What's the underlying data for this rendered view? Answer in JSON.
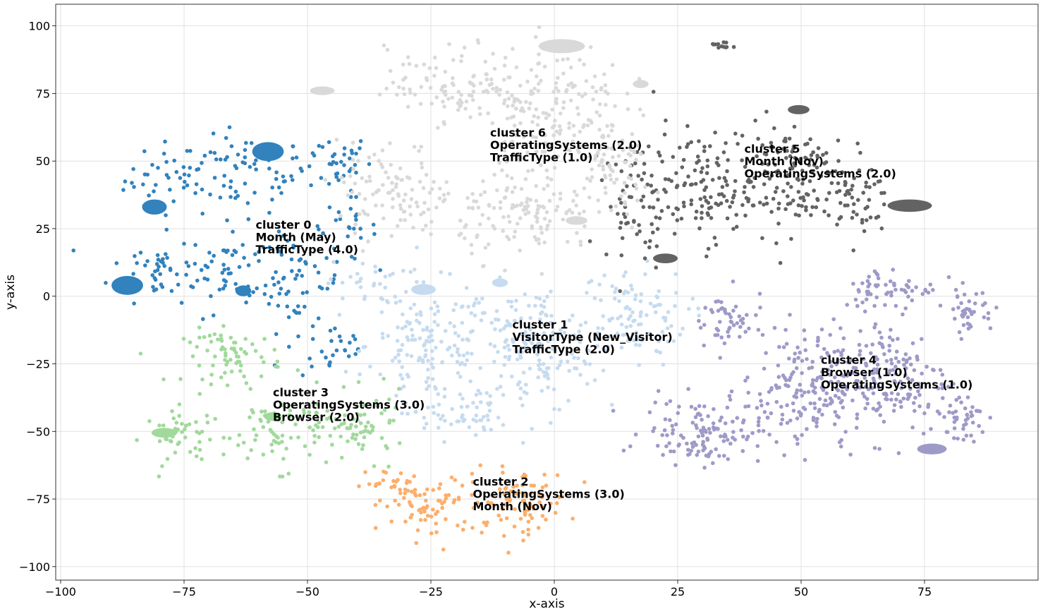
{
  "chart_data": {
    "type": "scatter",
    "title": "",
    "xlabel": "x-axis",
    "ylabel": "y-axis",
    "xlim": [
      -101,
      98
    ],
    "ylim": [
      -105,
      108
    ],
    "xticks": [
      -100,
      -75,
      -50,
      -25,
      0,
      25,
      50,
      75
    ],
    "yticks": [
      -100,
      -75,
      -50,
      -25,
      0,
      25,
      50,
      75,
      100
    ],
    "xtick_labels": [
      "−100",
      "−75",
      "−50",
      "−25",
      "0",
      "25",
      "50",
      "75"
    ],
    "ytick_labels": [
      "−100",
      "−75",
      "−50",
      "−25",
      "0",
      "25",
      "50",
      "75",
      "100"
    ],
    "grid": true,
    "legend": "none",
    "clusters": [
      {
        "name": "cluster 0",
        "color": "#3182bd",
        "label_lines": [
          "cluster 0",
          "Month (May)",
          "TrafficType (4.0)"
        ],
        "label_pos": [
          -60.5,
          25
        ],
        "blobs": [
          {
            "cx": -77,
            "cy": 43,
            "rx": 10,
            "ry": 14,
            "n": 45
          },
          {
            "cx": -62,
            "cy": 45,
            "rx": 12,
            "ry": 14,
            "n": 55
          },
          {
            "cx": -46,
            "cy": 50,
            "rx": 9,
            "ry": 10,
            "n": 40
          },
          {
            "cx": -80,
            "cy": 10,
            "rx": 10,
            "ry": 12,
            "n": 45
          },
          {
            "cx": -66,
            "cy": 10,
            "rx": 10,
            "ry": 16,
            "n": 60
          },
          {
            "cx": -52,
            "cy": 5,
            "rx": 9,
            "ry": 18,
            "n": 55
          },
          {
            "cx": -42,
            "cy": 25,
            "rx": 6,
            "ry": 12,
            "n": 25
          },
          {
            "cx": -44,
            "cy": -20,
            "rx": 7,
            "ry": 10,
            "n": 25
          }
        ],
        "blobs_big": [
          [
            -86.5,
            4,
            3.2,
            3.5
          ],
          [
            -58,
            53.5,
            3.2,
            3.5
          ],
          [
            -81,
            33,
            2.5,
            2.8
          ],
          [
            -63,
            2,
            1.6,
            2
          ]
        ]
      },
      {
        "name": "cluster 1",
        "color": "#c6dbef",
        "label_lines": [
          "cluster 1",
          "VisitorType (New_Visitor)",
          "TrafficType (2.0)"
        ],
        "label_pos": [
          -8.5,
          -12
        ],
        "blobs": [
          {
            "cx": -25,
            "cy": -18,
            "rx": 13,
            "ry": 22,
            "n": 150
          },
          {
            "cx": -5,
            "cy": -20,
            "rx": 14,
            "ry": 24,
            "n": 170
          },
          {
            "cx": 15,
            "cy": -8,
            "rx": 12,
            "ry": 18,
            "n": 110
          },
          {
            "cx": -38,
            "cy": 5,
            "rx": 8,
            "ry": 8,
            "n": 30
          },
          {
            "cx": -20,
            "cy": -45,
            "rx": 10,
            "ry": 8,
            "n": 50
          }
        ],
        "blobs_big": [
          [
            -26.5,
            2.5,
            2.5,
            2
          ],
          [
            -11,
            5,
            1.6,
            1.6
          ]
        ]
      },
      {
        "name": "cluster 2",
        "color": "#fdae6b",
        "label_lines": [
          "cluster 2",
          "OperatingSystems (3.0)",
          "Month (Nov)"
        ],
        "label_pos": [
          -16.5,
          -70
        ],
        "blobs": [
          {
            "cx": -25,
            "cy": -78,
            "rx": 10,
            "ry": 12,
            "n": 75
          },
          {
            "cx": -7,
            "cy": -76,
            "rx": 10,
            "ry": 12,
            "n": 85
          },
          {
            "cx": -34,
            "cy": -69,
            "rx": 5,
            "ry": 5,
            "n": 20
          }
        ],
        "blobs_big": []
      },
      {
        "name": "cluster 3",
        "color": "#a1d99b",
        "label_lines": [
          "cluster 3",
          "OperatingSystems (3.0)",
          "Browser (2.0)"
        ],
        "label_pos": [
          -57,
          -37
        ],
        "blobs": [
          {
            "cx": -65,
            "cy": -22,
            "rx": 10,
            "ry": 10,
            "n": 70
          },
          {
            "cx": -75,
            "cy": -52,
            "rx": 8,
            "ry": 10,
            "n": 50
          },
          {
            "cx": -55,
            "cy": -50,
            "rx": 12,
            "ry": 14,
            "n": 80
          },
          {
            "cx": -38,
            "cy": -48,
            "rx": 8,
            "ry": 12,
            "n": 55
          }
        ],
        "blobs_big": [
          [
            -79,
            -50.5,
            2.6,
            1.8
          ],
          [
            -57,
            -44.5,
            1.8,
            1.6
          ]
        ]
      },
      {
        "name": "cluster 4",
        "color": "#9e9ac8",
        "label_lines": [
          "cluster 4",
          "Browser (1.0)",
          "OperatingSystems (1.0)"
        ],
        "label_pos": [
          54,
          -25
        ],
        "blobs": [
          {
            "cx": 35,
            "cy": -10,
            "rx": 8,
            "ry": 12,
            "n": 50
          },
          {
            "cx": 30,
            "cy": -50,
            "rx": 12,
            "ry": 12,
            "n": 120
          },
          {
            "cx": 50,
            "cy": -35,
            "rx": 12,
            "ry": 22,
            "n": 180
          },
          {
            "cx": 68,
            "cy": -30,
            "rx": 12,
            "ry": 22,
            "n": 160
          },
          {
            "cx": 68,
            "cy": 3,
            "rx": 10,
            "ry": 8,
            "n": 60
          },
          {
            "cx": 84,
            "cy": -5,
            "rx": 5,
            "ry": 8,
            "n": 40
          },
          {
            "cx": 82,
            "cy": -45,
            "rx": 6,
            "ry": 10,
            "n": 45
          }
        ],
        "blobs_big": [
          [
            76.5,
            -56.5,
            3,
            2
          ]
        ]
      },
      {
        "name": "cluster 5",
        "color": "#636363",
        "label_lines": [
          "cluster 5",
          "Month (Nov)",
          "OperatingSystems (2.0)"
        ],
        "label_pos": [
          38.5,
          53
        ],
        "blobs": [
          {
            "cx": 17,
            "cy": 35,
            "rx": 7,
            "ry": 22,
            "n": 70
          },
          {
            "cx": 30,
            "cy": 40,
            "rx": 10,
            "ry": 20,
            "n": 110
          },
          {
            "cx": 47,
            "cy": 45,
            "rx": 12,
            "ry": 22,
            "n": 140
          },
          {
            "cx": 60,
            "cy": 35,
            "rx": 8,
            "ry": 12,
            "n": 50
          },
          {
            "cx": 34,
            "cy": 93,
            "rx": 2,
            "ry": 2,
            "n": 12
          }
        ],
        "blobs_big": [
          [
            72,
            33.5,
            4.5,
            2.3
          ],
          [
            22.5,
            14,
            2.5,
            1.8
          ],
          [
            49.5,
            69,
            2.2,
            1.7
          ]
        ]
      },
      {
        "name": "cluster 6",
        "color": "#d9d9d9",
        "label_lines": [
          "cluster 6",
          "OperatingSystems (2.0)",
          "TrafficType (1.0)"
        ],
        "label_pos": [
          -13,
          59
        ],
        "blobs": [
          {
            "cx": -20,
            "cy": 78,
            "rx": 14,
            "ry": 14,
            "n": 110
          },
          {
            "cx": 0,
            "cy": 70,
            "rx": 14,
            "ry": 24,
            "n": 170
          },
          {
            "cx": -32,
            "cy": 38,
            "rx": 12,
            "ry": 18,
            "n": 110
          },
          {
            "cx": -5,
            "cy": 30,
            "rx": 14,
            "ry": 16,
            "n": 130
          },
          {
            "cx": 12,
            "cy": 45,
            "rx": 8,
            "ry": 20,
            "n": 70
          }
        ],
        "blobs_big": [
          [
            1.5,
            92.5,
            4.7,
            2.6
          ],
          [
            -47,
            76,
            2.5,
            1.6
          ],
          [
            4.5,
            28,
            2.2,
            1.6
          ],
          [
            17.5,
            78.5,
            1.6,
            1.5
          ]
        ]
      }
    ]
  }
}
